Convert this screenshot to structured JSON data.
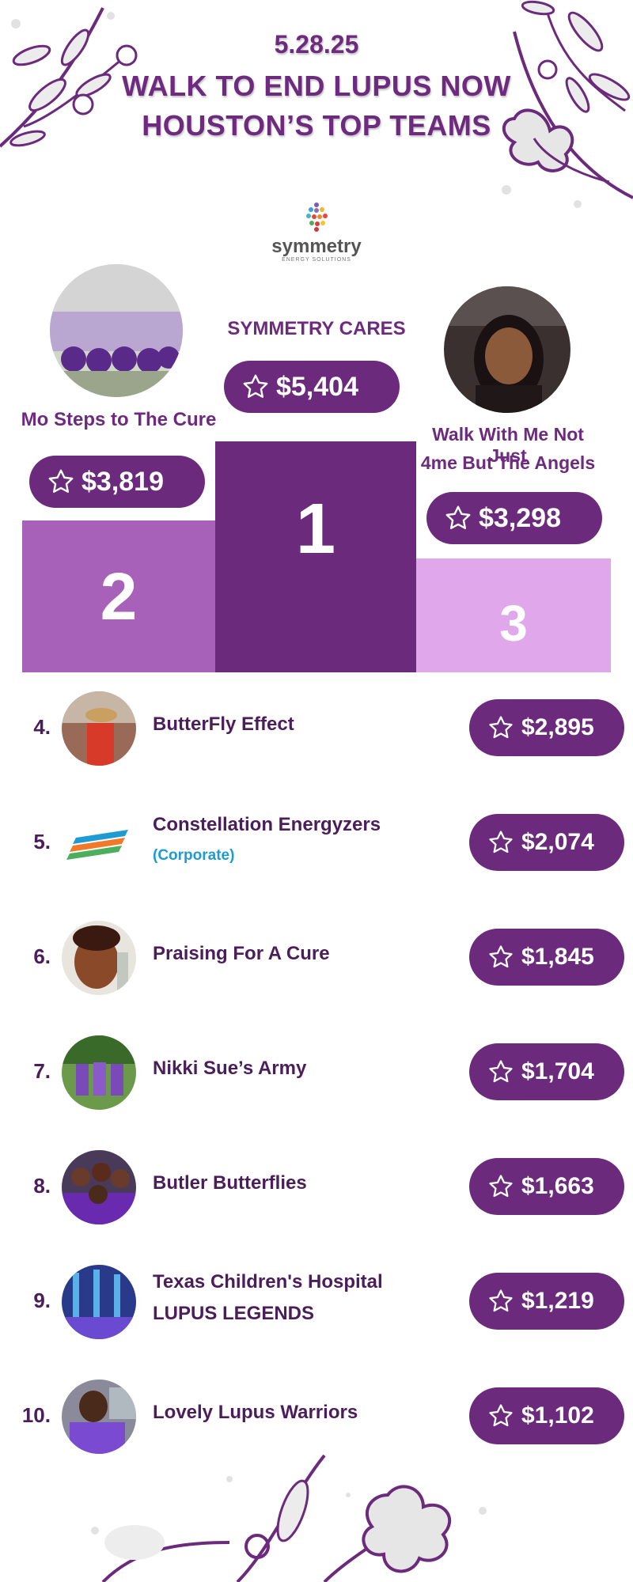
{
  "header": {
    "date": "5.28.25",
    "title_line1": "WALK TO END LUPUS NOW",
    "title_line2": "HOUSTON’S TOP TEAMS"
  },
  "sponsor": {
    "name": "symmetry",
    "tagline": "ENERGY SOLUTIONS"
  },
  "colors": {
    "primary": "#6b2a7b",
    "second_place": "#a861b8",
    "third_place": "#e0a8ea",
    "corporate_label": "#1f9bd4"
  },
  "podium": {
    "first": {
      "place": "1",
      "team": "SYMMETRY CARES",
      "amount": "$5,404"
    },
    "second": {
      "place": "2",
      "team": "Mo Steps to The Cure",
      "amount": "$3,819"
    },
    "third": {
      "place": "3",
      "team_line1": "Walk With Me Not Just",
      "team_line2": "4me But The Angels",
      "amount": "$3,298"
    }
  },
  "teams": [
    {
      "rank": "4.",
      "name": "ButterFly Effect",
      "amount": "$2,895"
    },
    {
      "rank": "5.",
      "name": "Constellation Energyzers",
      "sub": "(Corporate)",
      "amount": "$2,074"
    },
    {
      "rank": "6.",
      "name": "Praising For A Cure",
      "amount": "$1,845"
    },
    {
      "rank": "7.",
      "name": "Nikki Sue’s Army",
      "amount": "$1,704"
    },
    {
      "rank": "8.",
      "name": "Butler Butterflies",
      "amount": "$1,663"
    },
    {
      "rank": "9.",
      "name": "Texas Children's Hospital",
      "name_line2": "LUPUS LEGENDS",
      "amount": "$1,219"
    },
    {
      "rank": "10.",
      "name": "Lovely Lupus Warriors",
      "amount": "$1,102"
    }
  ]
}
